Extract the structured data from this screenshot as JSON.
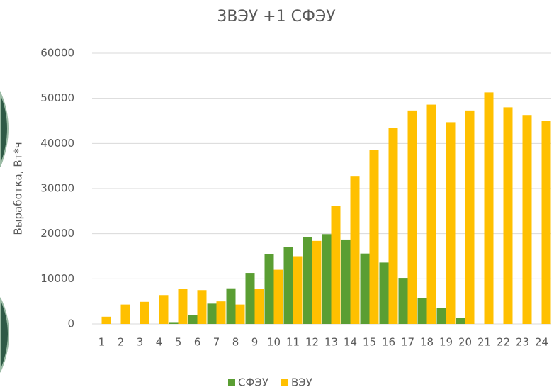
{
  "chart_data": {
    "type": "bar",
    "title": "3ВЭУ +1 СФЭУ",
    "y_label": "Выработка, Вт*ч",
    "categories": [
      "1",
      "2",
      "3",
      "4",
      "5",
      "6",
      "7",
      "8",
      "9",
      "10",
      "11",
      "12",
      "13",
      "14",
      "15",
      "16",
      "17",
      "18",
      "19",
      "20",
      "21",
      "22",
      "23",
      "24"
    ],
    "series": [
      {
        "name": "СФЭУ",
        "color": "#5a9e33",
        "values": [
          0,
          0,
          0,
          0,
          400,
          2000,
          4500,
          7900,
          11300,
          15400,
          17000,
          19300,
          19900,
          18700,
          15600,
          13600,
          10200,
          5800,
          3500,
          1400,
          0,
          0,
          0,
          0
        ]
      },
      {
        "name": "ВЭУ",
        "color": "#ffc000",
        "values": [
          1600,
          4300,
          4900,
          6400,
          7800,
          7500,
          5000,
          4300,
          7800,
          12000,
          15000,
          18400,
          26200,
          32800,
          38600,
          43500,
          47300,
          48600,
          44700,
          47300,
          51300,
          48000,
          46300,
          45000
        ]
      }
    ],
    "ylim": [
      0,
      60000
    ],
    "yticks": [
      0,
      10000,
      20000,
      30000,
      40000,
      50000,
      60000
    ],
    "grid": true,
    "legend": "bottom"
  }
}
